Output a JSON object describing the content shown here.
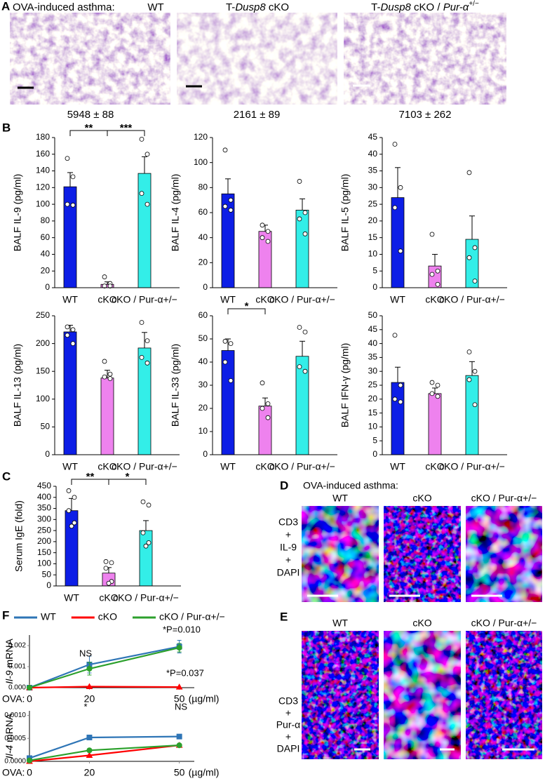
{
  "panel_a": {
    "label": "A",
    "header": "OVA-induced asthma:",
    "groups": [
      [
        "WT"
      ],
      [
        "T-",
        "Dusp8",
        " cKO"
      ],
      [
        "T-",
        "Dusp8",
        " cKO / ",
        "Pur-α",
        "+/−"
      ]
    ],
    "scores": [
      "5948 ± 88",
      "2161 ± 89",
      "7103 ± 262"
    ]
  },
  "panel_d": {
    "label": "D",
    "header": "OVA-induced asthma:",
    "groups": [
      "WT",
      "cKO",
      "cKO / Pur-α+/−"
    ],
    "stains": [
      "CD3",
      "+",
      "IL-9",
      "+",
      "DAPI"
    ]
  },
  "panel_e": {
    "label": "E",
    "groups": [
      "WT",
      "cKO",
      "cKO / Pur-α+/−"
    ],
    "stains": [
      "CD3",
      "+",
      "Pur-α",
      "+",
      "DAPI"
    ]
  },
  "chart_data": [
    {
      "type": "bar",
      "panel_label": "B",
      "ylabel": "BALF IL-9 (pg/ml)",
      "categories": [
        "WT",
        "cKO",
        "cKO / Pur-α+/−"
      ],
      "values": [
        121,
        4,
        137
      ],
      "errors": [
        17,
        3,
        20
      ],
      "points": [
        [
          155,
          133,
          100,
          99
        ],
        [
          13,
          5,
          2,
          2
        ],
        [
          178,
          160,
          113,
          100
        ]
      ],
      "colors": [
        "#0d1ee6",
        "#ee82ee",
        "#33eee8"
      ],
      "ylim": [
        0,
        180
      ],
      "yticks": [
        0,
        20,
        40,
        60,
        80,
        100,
        120,
        140,
        160,
        180
      ],
      "brackets": [
        {
          "from": 0,
          "to": 1,
          "label": "**"
        },
        {
          "from": 1,
          "to": 2,
          "label": "***"
        }
      ]
    },
    {
      "type": "bar",
      "ylabel": "BALF IL-4 (pg/ml)",
      "categories": [
        "WT",
        "cKO",
        "cKO / Pur-α+/−"
      ],
      "values": [
        75,
        45,
        62
      ],
      "errors": [
        12,
        5,
        9
      ],
      "points": [
        [
          110,
          70,
          65,
          62
        ],
        [
          50,
          45,
          40,
          37
        ],
        [
          85,
          60,
          55,
          43
        ]
      ],
      "colors": [
        "#0d1ee6",
        "#ee82ee",
        "#33eee8"
      ],
      "ylim": [
        0,
        120
      ],
      "yticks": [
        0,
        20,
        40,
        60,
        80,
        100,
        120
      ]
    },
    {
      "type": "bar",
      "ylabel": "BALF IL-5 (pg/ml)",
      "categories": [
        "WT",
        "cKO",
        "cKO / Pur-α+/−"
      ],
      "values": [
        27,
        6.5,
        14.5
      ],
      "errors": [
        9,
        3.5,
        7
      ],
      "points": [
        [
          43,
          30,
          24,
          11
        ],
        [
          16,
          5,
          4,
          1
        ],
        [
          34.5,
          12,
          9,
          2
        ]
      ],
      "colors": [
        "#0d1ee6",
        "#ee82ee",
        "#33eee8"
      ],
      "ylim": [
        0,
        45
      ],
      "yticks": [
        0,
        5,
        10,
        15,
        20,
        25,
        30,
        35,
        40,
        45
      ]
    },
    {
      "type": "bar",
      "ylabel": "BALF IL-13 (pg/ml)",
      "categories": [
        "WT",
        "cKO",
        "cKO / Pur-α+/−"
      ],
      "values": [
        221,
        138,
        192
      ],
      "errors": [
        12,
        14,
        28
      ],
      "points": [
        [
          230,
          225,
          215,
          200
        ],
        [
          168,
          145,
          140,
          137
        ],
        [
          238,
          205,
          175,
          165
        ]
      ],
      "colors": [
        "#0d1ee6",
        "#ee82ee",
        "#33eee8"
      ],
      "ylim": [
        0,
        250
      ],
      "yticks": [
        0,
        50,
        100,
        150,
        200,
        250
      ]
    },
    {
      "type": "bar",
      "ylabel": "BALF IL-33 (pg/ml)",
      "categories": [
        "WT",
        "cKO",
        "cKO / Pur-α+/−"
      ],
      "values": [
        45,
        21,
        42.5
      ],
      "errors": [
        5,
        3.5,
        6.5
      ],
      "points": [
        [
          49,
          48,
          40,
          32
        ],
        [
          31,
          22,
          20,
          16
        ],
        [
          55,
          53,
          38,
          36
        ]
      ],
      "colors": [
        "#0d1ee6",
        "#ee82ee",
        "#33eee8"
      ],
      "ylim": [
        0,
        60
      ],
      "yticks": [
        0,
        10,
        20,
        30,
        40,
        50,
        60
      ],
      "brackets": [
        {
          "from": 0,
          "to": 1,
          "label": "*"
        }
      ]
    },
    {
      "type": "bar",
      "ylabel": "BALF IFN-γ (pg/ml)",
      "categories": [
        "WT",
        "cKO",
        "cKO / Pur-α+/−"
      ],
      "values": [
        26,
        22,
        28.5
      ],
      "errors": [
        5.5,
        2,
        5
      ],
      "points": [
        [
          43,
          25,
          20,
          19
        ],
        [
          26,
          25,
          22,
          21
        ],
        [
          37,
          30,
          27,
          18
        ]
      ],
      "colors": [
        "#0d1ee6",
        "#ee82ee",
        "#33eee8"
      ],
      "ylim": [
        0,
        50
      ],
      "yticks": [
        0,
        5,
        10,
        15,
        20,
        25,
        30,
        35,
        40,
        45,
        50
      ]
    },
    {
      "type": "bar",
      "panel_label": "C",
      "ylabel": "Serum IgE (fold)",
      "categories": [
        "WT",
        "cKO",
        "cKO / Pur-α+/−"
      ],
      "values": [
        340,
        58,
        250
      ],
      "errors": [
        55,
        25,
        45
      ],
      "points": [
        [
          430,
          400,
          340,
          285,
          270
        ],
        [
          110,
          105,
          80,
          20,
          12
        ],
        [
          380,
          365,
          240,
          195,
          180
        ]
      ],
      "colors": [
        "#0d1ee6",
        "#ee82ee",
        "#33eee8"
      ],
      "ylim": [
        0,
        450
      ],
      "yticks": [
        0,
        50,
        100,
        150,
        200,
        250,
        300,
        350,
        400,
        450
      ],
      "brackets": [
        {
          "from": 0,
          "to": 1,
          "label": "**"
        },
        {
          "from": 1,
          "to": 2,
          "label": "*"
        }
      ]
    },
    {
      "type": "line",
      "panel_label": "F",
      "legend": "top",
      "ylabel_gene": "Il-9",
      "ylabel_rest": " mRNA",
      "xlabel": "OVA:",
      "x_unit": "(µg/ml)",
      "x": [
        0,
        20,
        50
      ],
      "xlim": [
        0,
        55
      ],
      "xticks": [
        0,
        20,
        50
      ],
      "ylim": [
        0,
        0.0025
      ],
      "yticks": [
        {
          "value": 0,
          "label": "0.000"
        },
        {
          "value": 0.001,
          "label": "0.001"
        },
        {
          "value": 0.002,
          "label": "0.002"
        }
      ],
      "series": [
        {
          "name": "WT",
          "color": "#2e75b6",
          "marker": "square",
          "values": [
            0,
            0.0011,
            0.00195
          ],
          "errors": [
            0,
            0.0004,
            0.0003
          ]
        },
        {
          "name": "cKO",
          "color": "#ff0000",
          "marker": "triangle",
          "values": [
            0,
            5e-05,
            3e-05
          ],
          "errors": [
            0,
            0,
            0
          ]
        },
        {
          "name": "cKO / Pur-α+/−",
          "color": "#2ca02c",
          "marker": "circle",
          "values": [
            0,
            0.0009,
            0.0019
          ],
          "errors": [
            0,
            0.0003,
            0.0002
          ]
        }
      ],
      "annotations": [
        {
          "text": "NS",
          "color": "#000000"
        },
        {
          "text": "*P=0.010",
          "color": "#2e75b6"
        },
        {
          "text": "*P=0.037",
          "color": "#2ca02c"
        }
      ]
    },
    {
      "type": "line",
      "ylabel_gene": "Il-4",
      "ylabel_rest": " mRNA",
      "xlabel": "OVA:",
      "x_unit": "(µg/ml)",
      "x": [
        0,
        20,
        50
      ],
      "xlim": [
        0,
        55
      ],
      "xticks": [
        0,
        20,
        50
      ],
      "ylim": [
        0,
        0.0011
      ],
      "yticks": [
        {
          "value": 0,
          "label": "0.0000"
        },
        {
          "value": 0.0005,
          "label": "0.0005"
        },
        {
          "value": 0.001,
          "label": "0.0010"
        }
      ],
      "series": [
        {
          "name": "WT",
          "color": "#2e75b6",
          "marker": "square",
          "values": [
            7e-05,
            0.00052,
            0.00054
          ],
          "errors": [
            0,
            0,
            0
          ]
        },
        {
          "name": "cKO",
          "color": "#ff0000",
          "marker": "triangle",
          "values": [
            0,
            0.00013,
            0.00035
          ],
          "errors": [
            0,
            0,
            0
          ]
        },
        {
          "name": "cKO / Pur-α+/−",
          "color": "#2ca02c",
          "marker": "circle",
          "values": [
            2e-05,
            0.00024,
            0.00035
          ],
          "errors": [
            0,
            0,
            0
          ]
        }
      ],
      "annotations": [
        {
          "text": "*",
          "color": "#000000"
        },
        {
          "text": "NS",
          "color": "#000000"
        }
      ]
    }
  ]
}
